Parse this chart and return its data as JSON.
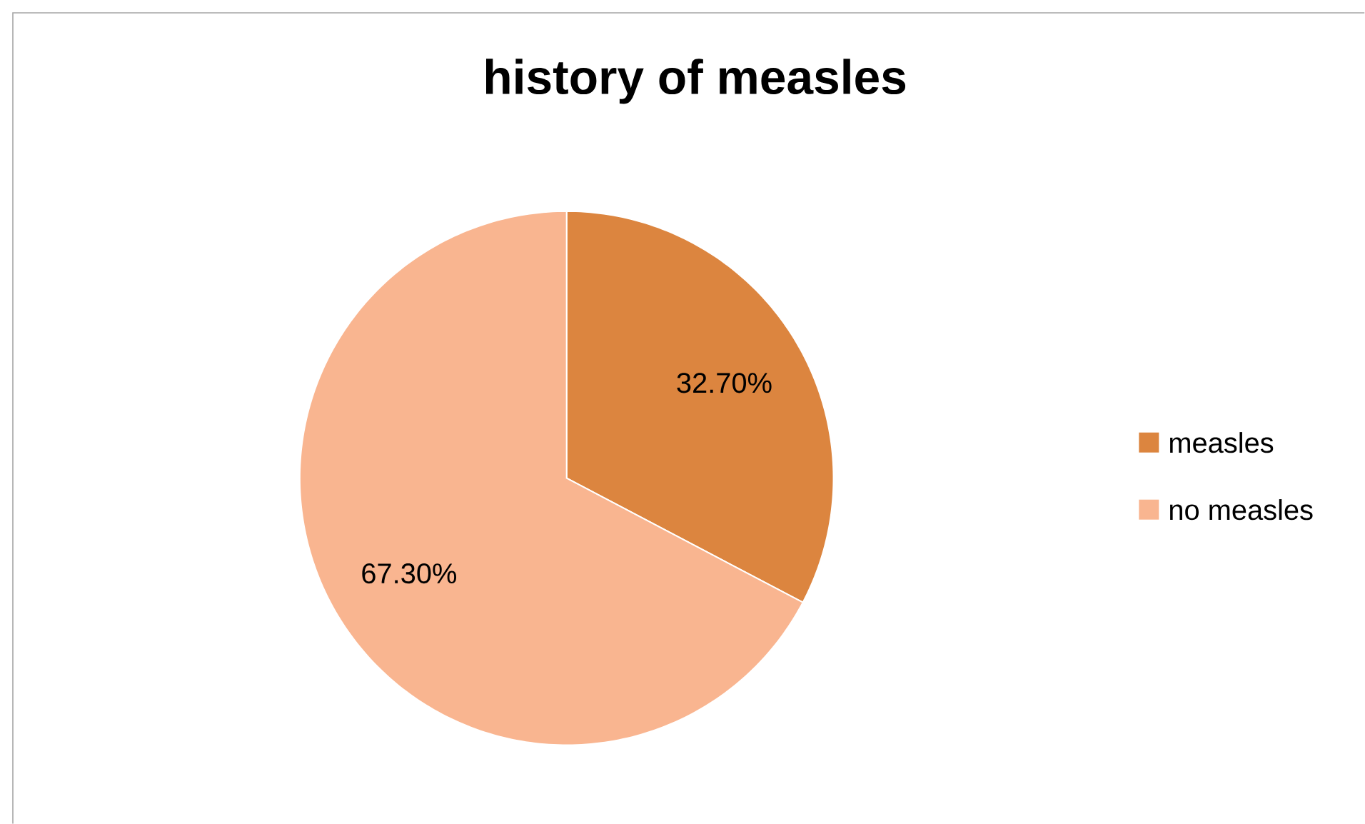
{
  "chart_data": {
    "type": "pie",
    "title": "history of measles",
    "categories": [
      "measles",
      "no measles"
    ],
    "values": [
      32.7,
      67.3
    ],
    "colors": [
      "#dc853f",
      "#f9b590"
    ],
    "value_labels": [
      "32.70%",
      "67.30%"
    ],
    "legend": "right"
  }
}
